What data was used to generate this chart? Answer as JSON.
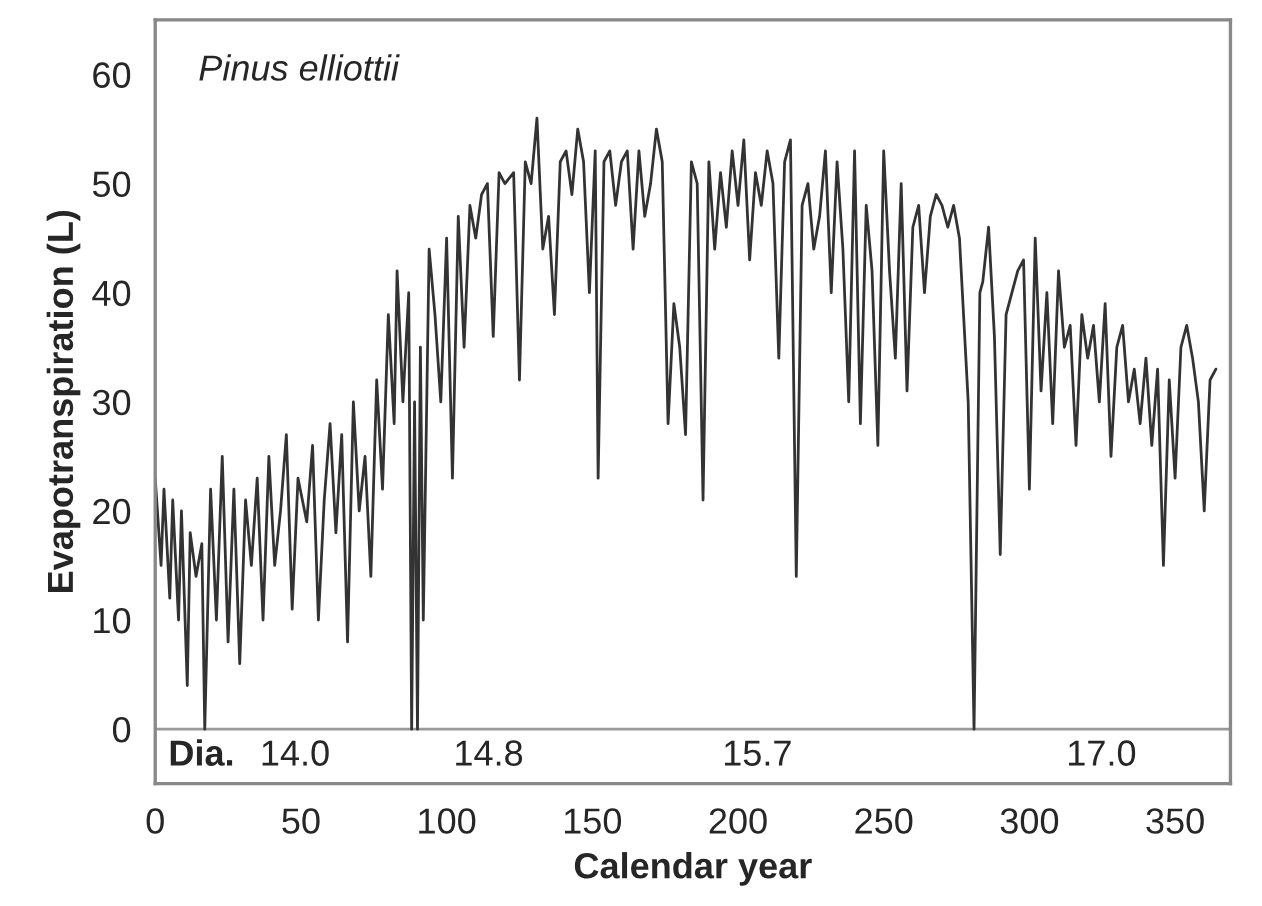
{
  "chart_data": {
    "type": "line",
    "xlabel": "Calendar year",
    "ylabel": "Evapotranspiration (L)",
    "annotations": [
      "Pinus elliottii",
      "Dia.",
      "14.0",
      "14.8",
      "15.7",
      "17.0"
    ],
    "xlim": [
      0,
      369
    ],
    "xticks": [
      0,
      50,
      100,
      150,
      200,
      250,
      300,
      350
    ],
    "ylim": [
      -5,
      65
    ],
    "yticks": [
      0,
      10,
      20,
      30,
      40,
      50,
      60
    ],
    "grid": false,
    "legend": false,
    "ref_lines": [
      {
        "axis": "y",
        "value": 0,
        "color": "#999999"
      }
    ],
    "series": [
      {
        "color": "#333333",
        "x": [
          0,
          2,
          3,
          5,
          6,
          8,
          9,
          11,
          12,
          14,
          16,
          17,
          19,
          21,
          23,
          25,
          27,
          29,
          31,
          33,
          35,
          37,
          39,
          41,
          43,
          45,
          47,
          49,
          52,
          54,
          56,
          58,
          60,
          62,
          64,
          66,
          68,
          70,
          72,
          74,
          76,
          78,
          80,
          82,
          83,
          85,
          87,
          88,
          89,
          90,
          91,
          92,
          94,
          96,
          98,
          100,
          102,
          104,
          106,
          108,
          110,
          112,
          114,
          116,
          118,
          120,
          123,
          125,
          127,
          129,
          131,
          133,
          135,
          137,
          139,
          141,
          143,
          145,
          147,
          149,
          151,
          152,
          154,
          156,
          158,
          160,
          162,
          164,
          166,
          168,
          170,
          172,
          174,
          176,
          178,
          180,
          182,
          184,
          186,
          188,
          190,
          192,
          194,
          196,
          198,
          200,
          202,
          204,
          206,
          208,
          210,
          212,
          214,
          216,
          218,
          220,
          222,
          224,
          226,
          228,
          230,
          232,
          234,
          236,
          238,
          240,
          242,
          244,
          246,
          248,
          250,
          252,
          254,
          256,
          258,
          260,
          262,
          264,
          266,
          268,
          270,
          272,
          274,
          276,
          279,
          281,
          283,
          284,
          286,
          288,
          290,
          292,
          294,
          296,
          298,
          300,
          302,
          304,
          306,
          308,
          310,
          312,
          314,
          316,
          318,
          320,
          322,
          324,
          326,
          328,
          330,
          332,
          334,
          336,
          338,
          340,
          342,
          344,
          346,
          348,
          350,
          352,
          354,
          356,
          358,
          360,
          362,
          364
        ],
        "values": [
          23,
          15,
          22,
          12,
          21,
          10,
          20,
          4,
          18,
          14,
          17,
          0,
          22,
          10,
          25,
          8,
          22,
          6,
          21,
          15,
          23,
          10,
          25,
          15,
          20,
          27,
          11,
          23,
          19,
          26,
          10,
          21,
          28,
          18,
          27,
          8,
          30,
          20,
          25,
          14,
          32,
          22,
          38,
          28,
          42,
          30,
          40,
          0,
          30,
          0,
          35,
          10,
          44,
          38,
          30,
          45,
          23,
          47,
          35,
          48,
          45,
          49,
          50,
          36,
          51,
          50,
          51,
          32,
          52,
          50,
          56,
          44,
          47,
          38,
          52,
          53,
          49,
          55,
          52,
          40,
          53,
          23,
          52,
          53,
          48,
          52,
          53,
          44,
          53,
          47,
          50,
          55,
          52,
          28,
          39,
          35,
          27,
          52,
          50,
          21,
          52,
          44,
          51,
          46,
          53,
          48,
          54,
          43,
          51,
          48,
          53,
          50,
          34,
          52,
          54,
          14,
          48,
          50,
          44,
          47,
          53,
          40,
          52,
          44,
          30,
          53,
          28,
          48,
          42,
          26,
          53,
          42,
          34,
          50,
          31,
          46,
          48,
          40,
          47,
          49,
          48,
          46,
          48,
          45,
          30,
          0,
          40,
          41,
          46,
          36,
          16,
          38,
          40,
          42,
          43,
          22,
          45,
          31,
          40,
          28,
          42,
          35,
          37,
          26,
          38,
          34,
          37,
          30,
          39,
          25,
          35,
          37,
          30,
          33,
          28,
          34,
          26,
          33,
          15,
          32,
          23,
          35,
          37,
          34,
          30,
          20,
          32,
          33
        ]
      }
    ]
  }
}
